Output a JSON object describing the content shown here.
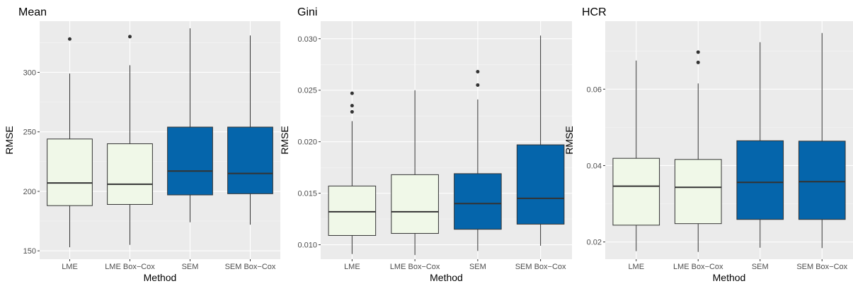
{
  "colors": {
    "panel_bg": "#ebebeb",
    "grid_major": "#ffffff",
    "grid_minor": "#f5f5f5",
    "lme_fill": "#f0f8e8",
    "sem_fill": "#0565ab",
    "line": "#333333",
    "text": "#000000",
    "tick_text": "#4d4d4d"
  },
  "chart_data": [
    {
      "type": "box",
      "title": "Mean",
      "xlabel": "Method",
      "ylabel": "RMSE",
      "ylim": [
        143,
        343
      ],
      "yticks": [
        150,
        200,
        250,
        300
      ],
      "ytick_labels": [
        "150",
        "200",
        "250",
        "300"
      ],
      "categories": [
        "LME",
        "LME Box−Cox",
        "SEM",
        "SEM Box−Cox"
      ],
      "boxes": [
        {
          "whisker_low": 153,
          "q1": 188,
          "median": 207,
          "q3": 244,
          "whisker_high": 299,
          "outliers": [
            328
          ]
        },
        {
          "whisker_low": 155,
          "q1": 189,
          "median": 206,
          "q3": 240,
          "whisker_high": 306,
          "outliers": [
            330
          ]
        },
        {
          "whisker_low": 174,
          "q1": 197,
          "median": 217,
          "q3": 254,
          "whisker_high": 337,
          "outliers": []
        },
        {
          "whisker_low": 172,
          "q1": 198,
          "median": 215,
          "q3": 254,
          "whisker_high": 331,
          "outliers": []
        }
      ]
    },
    {
      "type": "box",
      "title": "Gini",
      "xlabel": "Method",
      "ylabel": "RMSE",
      "ylim": [
        0.0086,
        0.0317
      ],
      "yticks": [
        0.01,
        0.015,
        0.02,
        0.025,
        0.03
      ],
      "ytick_labels": [
        "0.010",
        "0.015",
        "0.020",
        "0.025",
        "0.030"
      ],
      "categories": [
        "LME",
        "LME Box−Cox",
        "SEM",
        "SEM Box−Cox"
      ],
      "boxes": [
        {
          "whisker_low": 0.0091,
          "q1": 0.0109,
          "median": 0.0132,
          "q3": 0.0157,
          "whisker_high": 0.022,
          "outliers": [
            0.0229,
            0.0235,
            0.0247
          ]
        },
        {
          "whisker_low": 0.009,
          "q1": 0.0111,
          "median": 0.0132,
          "q3": 0.0168,
          "whisker_high": 0.025,
          "outliers": []
        },
        {
          "whisker_low": 0.0094,
          "q1": 0.0115,
          "median": 0.014,
          "q3": 0.0169,
          "whisker_high": 0.0241,
          "outliers": [
            0.0255,
            0.0268
          ]
        },
        {
          "whisker_low": 0.0099,
          "q1": 0.012,
          "median": 0.0145,
          "q3": 0.0197,
          "whisker_high": 0.0303,
          "outliers": []
        }
      ]
    },
    {
      "type": "box",
      "title": "HCR",
      "xlabel": "Method",
      "ylabel": "RMSE",
      "ylim": [
        0.0155,
        0.0778
      ],
      "yticks": [
        0.02,
        0.04,
        0.06
      ],
      "ytick_labels": [
        "0.02",
        "0.04",
        "0.06"
      ],
      "categories": [
        "LME",
        "LME Box−Cox",
        "SEM",
        "SEM Box−Cox"
      ],
      "boxes": [
        {
          "whisker_low": 0.0176,
          "q1": 0.0244,
          "median": 0.0346,
          "q3": 0.0419,
          "whisker_high": 0.0675,
          "outliers": []
        },
        {
          "whisker_low": 0.0174,
          "q1": 0.0248,
          "median": 0.0343,
          "q3": 0.0416,
          "whisker_high": 0.0615,
          "outliers": [
            0.067,
            0.0697
          ]
        },
        {
          "whisker_low": 0.0185,
          "q1": 0.0259,
          "median": 0.0356,
          "q3": 0.0465,
          "whisker_high": 0.0723,
          "outliers": []
        },
        {
          "whisker_low": 0.0184,
          "q1": 0.0259,
          "median": 0.0358,
          "q3": 0.0464,
          "whisker_high": 0.0747,
          "outliers": []
        }
      ]
    }
  ]
}
